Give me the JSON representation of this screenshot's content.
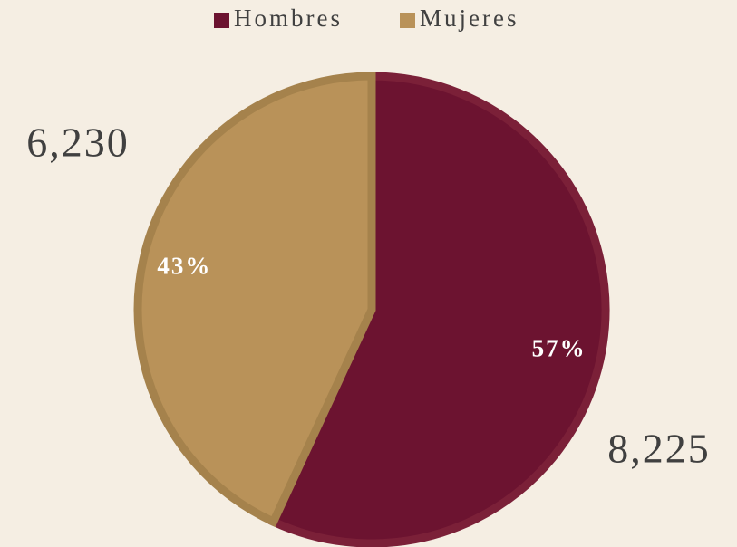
{
  "chart_data": {
    "type": "pie",
    "categories": [
      "Hombres",
      "Mujeres"
    ],
    "values": [
      8225,
      6230
    ],
    "value_labels": [
      "8,225",
      "6,230"
    ],
    "percentages": [
      57,
      43
    ],
    "percentage_labels": [
      "57%",
      "43%"
    ],
    "colors": [
      "#6c1330",
      "#b99259"
    ],
    "legend": "top"
  }
}
